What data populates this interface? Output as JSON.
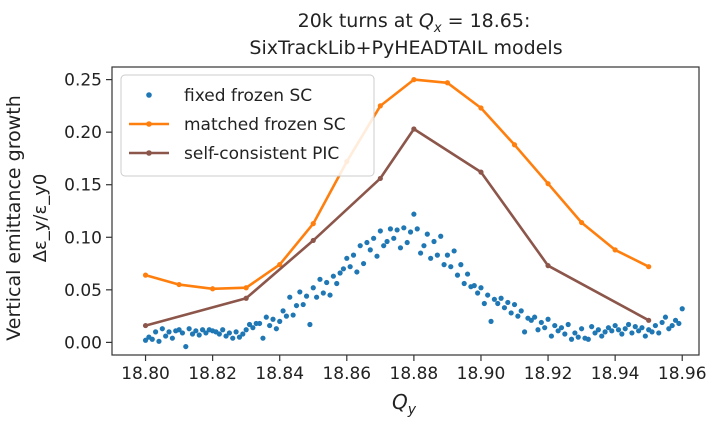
{
  "chart_data": {
    "type": "scatter",
    "title_line1_prefix": "20k turns at ",
    "title_line1_math_Q": "Q",
    "title_line1_math_sub": "x",
    "title_line1_suffix": " = 18.65:",
    "title_line2": "SixTrackLib+PyHEADTAIL models",
    "xlabel_Q": "Q",
    "xlabel_sub": "y",
    "ylabel_line1": "Vertical emittance growth",
    "ylabel_line2": "Δε_y/ε_y0",
    "xlim": [
      18.79,
      18.965
    ],
    "ylim": [
      -0.012,
      0.262
    ],
    "x_ticks": [
      18.8,
      18.82,
      18.84,
      18.86,
      18.88,
      18.9,
      18.92,
      18.94,
      18.96
    ],
    "x_tick_labels": [
      "18.80",
      "18.82",
      "18.84",
      "18.86",
      "18.88",
      "18.90",
      "18.92",
      "18.94",
      "18.96"
    ],
    "y_ticks": [
      0.0,
      0.05,
      0.1,
      0.15,
      0.2,
      0.25
    ],
    "y_tick_labels": [
      "0.00",
      "0.05",
      "0.10",
      "0.15",
      "0.20",
      "0.25"
    ],
    "grid": false,
    "legend_position": "top-left",
    "series": [
      {
        "name": "fixed frozen SC",
        "style": "scatter",
        "color": "#1f77b4",
        "x": [
          18.8,
          18.801,
          18.802,
          18.803,
          18.804,
          18.805,
          18.806,
          18.807,
          18.808,
          18.809,
          18.81,
          18.811,
          18.812,
          18.813,
          18.814,
          18.815,
          18.816,
          18.817,
          18.818,
          18.819,
          18.82,
          18.821,
          18.822,
          18.823,
          18.824,
          18.825,
          18.826,
          18.827,
          18.828,
          18.829,
          18.83,
          18.831,
          18.832,
          18.833,
          18.834,
          18.835,
          18.836,
          18.837,
          18.838,
          18.839,
          18.84,
          18.841,
          18.842,
          18.843,
          18.844,
          18.845,
          18.846,
          18.847,
          18.848,
          18.849,
          18.85,
          18.851,
          18.852,
          18.853,
          18.854,
          18.855,
          18.856,
          18.857,
          18.858,
          18.859,
          18.86,
          18.861,
          18.862,
          18.863,
          18.864,
          18.865,
          18.866,
          18.867,
          18.868,
          18.869,
          18.87,
          18.871,
          18.872,
          18.873,
          18.874,
          18.875,
          18.876,
          18.877,
          18.878,
          18.879,
          18.88,
          18.881,
          18.882,
          18.883,
          18.884,
          18.885,
          18.886,
          18.887,
          18.888,
          18.889,
          18.89,
          18.891,
          18.892,
          18.893,
          18.894,
          18.895,
          18.896,
          18.897,
          18.898,
          18.899,
          18.9,
          18.901,
          18.902,
          18.903,
          18.904,
          18.905,
          18.906,
          18.907,
          18.908,
          18.909,
          18.91,
          18.911,
          18.912,
          18.913,
          18.914,
          18.915,
          18.916,
          18.917,
          18.918,
          18.919,
          18.92,
          18.921,
          18.922,
          18.923,
          18.924,
          18.925,
          18.926,
          18.927,
          18.928,
          18.929,
          18.93,
          18.931,
          18.932,
          18.933,
          18.934,
          18.935,
          18.936,
          18.937,
          18.938,
          18.939,
          18.94,
          18.941,
          18.942,
          18.943,
          18.944,
          18.945,
          18.946,
          18.947,
          18.948,
          18.949,
          18.95,
          18.951,
          18.952,
          18.953,
          18.954,
          18.955,
          18.956,
          18.957,
          18.958,
          18.959,
          18.96
        ],
        "y": [
          0.002,
          0.005,
          0.003,
          0.01,
          0.001,
          0.013,
          0.006,
          0.01,
          0.004,
          0.011,
          0.012,
          0.009,
          -0.004,
          0.013,
          0.008,
          0.011,
          0.007,
          0.012,
          0.009,
          0.012,
          0.011,
          0.01,
          0.008,
          0.012,
          0.006,
          0.009,
          0.004,
          0.01,
          0.005,
          0.008,
          0.012,
          0.017,
          0.014,
          0.018,
          0.018,
          0.004,
          0.024,
          0.016,
          0.022,
          0.013,
          0.02,
          0.03,
          0.025,
          0.043,
          0.026,
          0.035,
          0.048,
          0.036,
          0.044,
          0.017,
          0.052,
          0.043,
          0.06,
          0.047,
          0.057,
          0.045,
          0.063,
          0.056,
          0.066,
          0.07,
          0.08,
          0.072,
          0.083,
          0.067,
          0.092,
          0.075,
          0.095,
          0.088,
          0.099,
          0.082,
          0.106,
          0.092,
          0.096,
          0.108,
          0.099,
          0.107,
          0.09,
          0.109,
          0.095,
          0.105,
          0.122,
          0.108,
          0.085,
          0.092,
          0.103,
          0.08,
          0.096,
          0.083,
          0.101,
          0.074,
          0.083,
          0.072,
          0.087,
          0.064,
          0.074,
          0.056,
          0.065,
          0.053,
          0.054,
          0.047,
          0.052,
          0.037,
          0.045,
          0.02,
          0.041,
          0.037,
          0.042,
          0.033,
          0.038,
          0.028,
          0.036,
          0.025,
          0.03,
          0.01,
          0.023,
          0.021,
          0.024,
          0.012,
          0.019,
          0.014,
          0.022,
          0.006,
          0.016,
          0.011,
          0.014,
          0.008,
          0.017,
          0.003,
          0.009,
          0.005,
          0.013,
          0.004,
          0.003,
          0.015,
          0.009,
          0.012,
          0.006,
          0.01,
          0.014,
          0.011,
          0.016,
          0.012,
          0.008,
          0.013,
          0.017,
          0.009,
          0.015,
          0.011,
          0.014,
          0.006,
          0.012,
          0.01,
          0.016,
          0.009,
          0.019,
          0.024,
          0.013,
          0.016,
          0.021,
          0.018,
          0.032
        ]
      },
      {
        "name": "matched frozen SC",
        "style": "line",
        "color": "#ff7f0e",
        "x": [
          18.8,
          18.81,
          18.82,
          18.83,
          18.84,
          18.85,
          18.86,
          18.87,
          18.88,
          18.89,
          18.9,
          18.91,
          18.92,
          18.93,
          18.94,
          18.95
        ],
        "y": [
          0.064,
          0.055,
          0.051,
          0.052,
          0.074,
          0.113,
          0.172,
          0.225,
          0.25,
          0.247,
          0.223,
          0.188,
          0.151,
          0.114,
          0.088,
          0.072
        ]
      },
      {
        "name": "self-consistent PIC",
        "style": "line",
        "color": "#8c564b",
        "x": [
          18.8,
          18.83,
          18.85,
          18.87,
          18.88,
          18.9,
          18.92,
          18.95
        ],
        "y": [
          0.016,
          0.042,
          0.097,
          0.156,
          0.203,
          0.162,
          0.073,
          0.021
        ]
      }
    ]
  }
}
